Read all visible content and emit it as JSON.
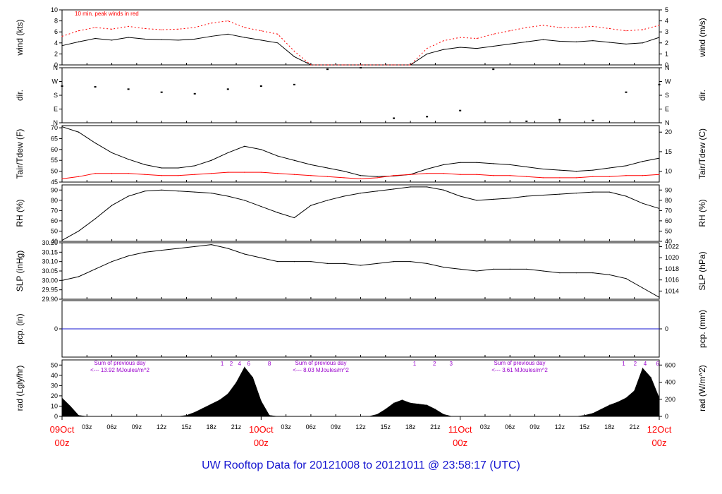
{
  "title": "UW Rooftop Data for 20121008  to  20121011 @ 23:58:17  (UTC)",
  "colors": {
    "primary": "#000000",
    "red": "#ff0000",
    "blue": "#1515d0",
    "purple": "#9900cc"
  },
  "chart_data": [
    {
      "type": "line",
      "panel": "wind",
      "ylabel": "wind (kts)",
      "ylabel_right": "wind (m/s)",
      "ylim": [
        0,
        10
      ],
      "yticks": [
        0,
        2,
        4,
        6,
        8,
        10
      ],
      "yticks_right": [
        0,
        1,
        2,
        3,
        4,
        5
      ],
      "annotation": "10 min. peak winds in red",
      "x_hours": [
        0,
        2,
        4,
        6,
        8,
        10,
        12,
        14,
        16,
        18,
        20,
        22,
        24,
        26,
        28,
        30,
        32,
        34,
        36,
        38,
        40,
        42,
        44,
        46,
        48,
        50,
        52,
        54,
        56,
        58,
        60,
        62,
        64,
        66,
        68,
        70,
        72
      ],
      "series": [
        {
          "values": [
            3.5,
            4.2,
            4.8,
            4.5,
            5.0,
            4.7,
            4.6,
            4.5,
            4.7,
            5.2,
            5.6,
            5.0,
            4.5,
            4.0,
            1.5,
            0,
            0,
            0,
            0,
            0,
            0,
            0,
            2.0,
            2.8,
            3.2,
            3.0,
            3.4,
            3.8,
            4.2,
            4.6,
            4.3,
            4.2,
            4.4,
            4.1,
            3.8,
            4.0,
            5.0
          ]
        },
        {
          "values": [
            5.2,
            6.2,
            6.8,
            6.5,
            7.0,
            6.6,
            6.4,
            6.5,
            6.8,
            7.6,
            8.0,
            6.8,
            6.2,
            5.6,
            2.5,
            0,
            0,
            0,
            0,
            0,
            0,
            0,
            3.0,
            4.4,
            5.0,
            4.8,
            5.6,
            6.2,
            6.8,
            7.2,
            6.8,
            6.8,
            7.0,
            6.6,
            6.2,
            6.4,
            7.2
          ]
        }
      ]
    },
    {
      "type": "scatter",
      "panel": "dir",
      "ylabel": "dir.",
      "ylabel_right": "dir.",
      "ylim": [
        0,
        360
      ],
      "ytick_labels": [
        "N",
        "E",
        "S",
        "W",
        "N"
      ],
      "ytick_labels_right": [
        "N",
        "E",
        "S",
        "W",
        "N"
      ],
      "x_hours": [
        0,
        4,
        8,
        12,
        16,
        20,
        24,
        28,
        32,
        36,
        40,
        44,
        48,
        52,
        56,
        60,
        64,
        68,
        72
      ],
      "series": [
        {
          "values": [
            240,
            235,
            220,
            200,
            190,
            220,
            240,
            250,
            350,
            360,
            30,
            40,
            80,
            350,
            10,
            20,
            15,
            200,
            250
          ]
        }
      ]
    },
    {
      "type": "line",
      "panel": "temp",
      "ylabel": "Tair/Tdew (F)",
      "ylabel_right": "Tair/Tdew (C)",
      "ylim": [
        45,
        71
      ],
      "yticks": [
        45,
        50,
        55,
        60,
        65,
        70
      ],
      "yticks_right": [
        10,
        15,
        20
      ],
      "x_hours": [
        0,
        2,
        4,
        6,
        8,
        10,
        12,
        14,
        16,
        18,
        20,
        22,
        24,
        26,
        28,
        30,
        32,
        34,
        36,
        38,
        40,
        42,
        44,
        46,
        48,
        50,
        52,
        54,
        56,
        58,
        60,
        62,
        64,
        66,
        68,
        70,
        72
      ],
      "series": [
        {
          "values": [
            70.5,
            68.0,
            63.0,
            58.5,
            55.5,
            53.0,
            51.5,
            51.5,
            52.5,
            55.0,
            58.5,
            61.5,
            60.0,
            57.0,
            55.0,
            53.0,
            51.5,
            50.0,
            48.0,
            47.5,
            47.8,
            48.5,
            51.0,
            53.0,
            54.0,
            54.0,
            53.5,
            53.0,
            52.0,
            51.0,
            50.5,
            50.0,
            50.5,
            51.5,
            52.5,
            54.5,
            56.0
          ]
        },
        {
          "values": [
            46.5,
            47.5,
            49.0,
            49.0,
            49.0,
            48.5,
            48.0,
            48.0,
            48.5,
            49.0,
            49.5,
            49.5,
            49.5,
            49.0,
            48.5,
            48.0,
            47.5,
            47.0,
            46.5,
            47.0,
            48.0,
            48.5,
            49.0,
            49.0,
            48.5,
            48.5,
            48.0,
            48.0,
            47.5,
            47.0,
            47.0,
            47.0,
            47.5,
            47.5,
            48.0,
            48.0,
            48.5
          ]
        }
      ]
    },
    {
      "type": "line",
      "panel": "rh",
      "ylabel": "RH (%)",
      "ylabel_right": "RH (%)",
      "ylim": [
        40,
        95
      ],
      "yticks": [
        40,
        50,
        60,
        70,
        80,
        90
      ],
      "yticks_right": [
        40,
        50,
        60,
        70,
        80,
        90
      ],
      "x_hours": [
        0,
        2,
        4,
        6,
        8,
        10,
        12,
        14,
        16,
        18,
        20,
        22,
        24,
        26,
        28,
        30,
        32,
        34,
        36,
        38,
        40,
        42,
        44,
        46,
        48,
        50,
        52,
        54,
        56,
        58,
        60,
        62,
        64,
        66,
        68,
        70,
        72
      ],
      "series": [
        {
          "values": [
            41,
            50,
            62,
            75,
            84,
            89,
            90,
            89,
            88,
            87,
            84,
            80,
            74,
            68,
            63,
            75,
            80,
            84,
            87,
            89,
            91,
            93,
            93,
            90,
            84,
            80,
            81,
            82,
            84,
            85,
            86,
            87,
            88,
            88,
            84,
            77,
            72
          ]
        }
      ]
    },
    {
      "type": "line",
      "panel": "slp",
      "ylabel": "SLP (inHg)",
      "ylabel_right": "SLP (hPa)",
      "ylim": [
        29.9,
        30.2
      ],
      "yticks": [
        29.9,
        29.95,
        30.0,
        30.05,
        30.1,
        30.15,
        30.2
      ],
      "ytick_labels": [
        "29.90",
        "29.95",
        "30.00",
        "30.05",
        "30.10",
        "30.15",
        "30.20"
      ],
      "yticks_right": [
        1014,
        1016,
        1018,
        1020,
        1022
      ],
      "x_hours": [
        0,
        2,
        4,
        6,
        8,
        10,
        12,
        14,
        16,
        18,
        20,
        22,
        24,
        26,
        28,
        30,
        32,
        34,
        36,
        38,
        40,
        42,
        44,
        46,
        48,
        50,
        52,
        54,
        56,
        58,
        60,
        62,
        64,
        66,
        68,
        70,
        72
      ],
      "series": [
        {
          "values": [
            30.0,
            30.02,
            30.06,
            30.1,
            30.13,
            30.15,
            30.16,
            30.17,
            30.18,
            30.19,
            30.17,
            30.14,
            30.12,
            30.1,
            30.1,
            30.1,
            30.09,
            30.09,
            30.08,
            30.09,
            30.1,
            30.1,
            30.09,
            30.07,
            30.06,
            30.05,
            30.06,
            30.06,
            30.06,
            30.05,
            30.04,
            30.04,
            30.04,
            30.03,
            30.01,
            29.96,
            29.91
          ]
        }
      ]
    },
    {
      "type": "line",
      "panel": "pcp",
      "ylabel": "pcp. (in)",
      "ylabel_right": "pcp. (mm)",
      "ytick_labels": [
        "0"
      ],
      "ytick_labels_right": [
        "0"
      ],
      "x_hours": [
        0,
        72
      ],
      "series": [
        {
          "values": [
            0,
            0
          ]
        }
      ]
    },
    {
      "type": "area",
      "panel": "rad",
      "ylabel": "rad (Lgly/hr)",
      "ylabel_right": "rad (W/m^2)",
      "ylim": [
        0,
        55
      ],
      "yticks": [
        0,
        10,
        20,
        30,
        40,
        50
      ],
      "yticks_right": [
        0,
        200,
        400,
        600
      ],
      "x_hours": [
        0,
        1,
        2,
        3,
        4,
        5,
        6,
        7,
        8,
        9,
        10,
        11,
        12,
        13,
        14,
        15,
        16,
        17,
        18,
        19,
        20,
        21,
        22,
        23,
        24,
        25,
        26,
        27,
        28,
        29,
        30,
        31,
        32,
        33,
        34,
        35,
        36,
        37,
        38,
        39,
        40,
        41,
        42,
        43,
        44,
        45,
        46,
        47,
        48,
        49,
        50,
        51,
        52,
        53,
        54,
        55,
        56,
        57,
        58,
        59,
        60,
        61,
        62,
        63,
        64,
        65,
        66,
        67,
        68,
        69,
        70,
        71,
        72
      ],
      "series": [
        {
          "values": [
            18,
            10,
            1,
            0,
            0,
            0,
            0,
            0,
            0,
            0,
            0,
            0,
            0,
            0,
            0,
            1,
            4,
            8,
            12,
            16,
            22,
            33,
            48,
            38,
            15,
            1,
            0,
            0,
            0,
            0,
            0,
            0,
            0,
            0,
            0,
            0,
            0,
            0,
            2,
            7,
            13,
            16,
            13,
            12,
            11,
            7,
            2,
            0,
            0,
            0,
            0,
            0,
            0,
            0,
            0,
            0,
            0,
            0,
            0,
            0,
            0,
            0,
            0,
            1,
            3,
            7,
            11,
            14,
            18,
            25,
            47,
            38,
            18
          ]
        }
      ],
      "day_sums": [
        {
          "line1": "Sum of previous day",
          "line2": "<--- 13.92 MJoules/m^2"
        },
        {
          "line1": "Sum of previous day",
          "line2": "<--- 8.03 MJoules/m^2"
        },
        {
          "line1": "Sum of previous day",
          "line2": "<--- 3.61 MJoules/m^2"
        }
      ],
      "hour_markers": [
        {
          "hour": 19.3,
          "label": "1"
        },
        {
          "hour": 20.4,
          "label": "2"
        },
        {
          "hour": 21.4,
          "label": "4"
        },
        {
          "hour": 22.5,
          "label": "6"
        },
        {
          "hour": 25.0,
          "label": "8"
        },
        {
          "hour": 42.5,
          "label": "1"
        },
        {
          "hour": 44.9,
          "label": "2"
        },
        {
          "hour": 46.9,
          "label": "3"
        },
        {
          "hour": 67.7,
          "label": "1"
        },
        {
          "hour": 69.1,
          "label": "2"
        },
        {
          "hour": 70.3,
          "label": "4"
        },
        {
          "hour": 71.8,
          "label": "6"
        }
      ]
    }
  ],
  "x_axis": {
    "small_ticks": [
      {
        "hour": 3,
        "label": "03z"
      },
      {
        "hour": 6,
        "label": "06z"
      },
      {
        "hour": 9,
        "label": "09z"
      },
      {
        "hour": 12,
        "label": "12z"
      },
      {
        "hour": 15,
        "label": "15z"
      },
      {
        "hour": 18,
        "label": "18z"
      },
      {
        "hour": 21,
        "label": "21z"
      },
      {
        "hour": 27,
        "label": "03z"
      },
      {
        "hour": 30,
        "label": "06z"
      },
      {
        "hour": 33,
        "label": "09z"
      },
      {
        "hour": 36,
        "label": "12z"
      },
      {
        "hour": 39,
        "label": "15z"
      },
      {
        "hour": 42,
        "label": "18z"
      },
      {
        "hour": 45,
        "label": "21z"
      },
      {
        "hour": 51,
        "label": "03z"
      },
      {
        "hour": 54,
        "label": "06z"
      },
      {
        "hour": 57,
        "label": "09z"
      },
      {
        "hour": 60,
        "label": "12z"
      },
      {
        "hour": 63,
        "label": "15z"
      },
      {
        "hour": 66,
        "label": "18z"
      },
      {
        "hour": 69,
        "label": "21z"
      }
    ],
    "day_ticks": [
      {
        "hour": 0,
        "line1": "09Oct",
        "line2": "00z"
      },
      {
        "hour": 24,
        "line1": "10Oct",
        "line2": "00z"
      },
      {
        "hour": 48,
        "line1": "11Oct",
        "line2": "00z"
      },
      {
        "hour": 72,
        "line1": "12Oct",
        "line2": "00z"
      }
    ]
  }
}
